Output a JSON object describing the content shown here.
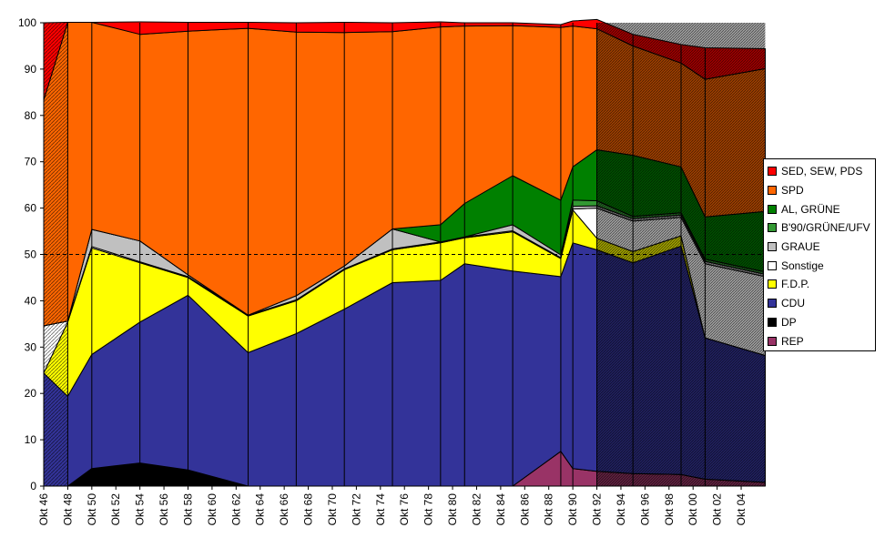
{
  "chart_data": {
    "type": "area",
    "stacked": true,
    "categories": [
      "Okt 46",
      "Okt 48",
      "Okt 50",
      "Okt 52",
      "Okt 54",
      "Okt 56",
      "Okt 58",
      "Okt 60",
      "Okt 62",
      "Okt 64",
      "Okt 66",
      "Okt 68",
      "Okt 70",
      "Okt 72",
      "Okt 74",
      "Okt 76",
      "Okt 78",
      "Okt 80",
      "Okt 82",
      "Okt 84",
      "Okt 86",
      "Okt 88",
      "Okt 90",
      "Okt 92",
      "Okt 94",
      "Okt 96",
      "Okt 98",
      "Okt 00",
      "Okt 02",
      "Okt 04"
    ],
    "x_years": [
      1946,
      1990,
      2006
    ],
    "ylim": [
      0,
      100
    ],
    "yticks": [
      0,
      10,
      20,
      30,
      40,
      50,
      60,
      70,
      80,
      90,
      100
    ],
    "reference_line": 50,
    "grid": false,
    "legend_position": "right",
    "series": [
      {
        "name": "REP",
        "color": "#993366",
        "points": [
          [
            1946,
            0
          ],
          [
            1948,
            0
          ],
          [
            1950,
            0
          ],
          [
            1954,
            0
          ],
          [
            1958,
            0
          ],
          [
            1963,
            0
          ],
          [
            1967,
            0
          ],
          [
            1971,
            0
          ],
          [
            1975,
            0
          ],
          [
            1979,
            0
          ],
          [
            1981,
            0
          ],
          [
            1985,
            0
          ],
          [
            1989,
            7.5
          ],
          [
            1990,
            3.8
          ],
          [
            1992,
            3.2
          ],
          [
            1995,
            2.7
          ],
          [
            1999,
            2.5
          ],
          [
            2001,
            1.5
          ],
          [
            2006,
            0.8
          ]
        ]
      },
      {
        "name": "DP",
        "color": "#000000",
        "points": [
          [
            1946,
            0
          ],
          [
            1948,
            0
          ],
          [
            1950,
            3.8
          ],
          [
            1954,
            5
          ],
          [
            1958,
            3.5
          ],
          [
            1963,
            0
          ],
          [
            1967,
            0
          ],
          [
            1971,
            0
          ],
          [
            1975,
            0
          ],
          [
            1979,
            0
          ],
          [
            1981,
            0
          ],
          [
            1985,
            0
          ],
          [
            1989,
            0
          ],
          [
            1990,
            0
          ],
          [
            1992,
            0
          ],
          [
            1995,
            0
          ],
          [
            1999,
            0
          ],
          [
            2001,
            0
          ],
          [
            2006,
            0
          ]
        ]
      },
      {
        "name": "CDU",
        "color": "#333399",
        "points": [
          [
            1946,
            24.4
          ],
          [
            1948,
            19.4
          ],
          [
            1950,
            24.6
          ],
          [
            1954,
            30.4
          ],
          [
            1958,
            37.7
          ],
          [
            1963,
            28.8
          ],
          [
            1967,
            32.9
          ],
          [
            1971,
            38.2
          ],
          [
            1975,
            43.9
          ],
          [
            1979,
            44.4
          ],
          [
            1981,
            48
          ],
          [
            1985,
            46.4
          ],
          [
            1989,
            37.7
          ],
          [
            1990,
            48.7
          ],
          [
            1992,
            47.8
          ],
          [
            1995,
            45.5
          ],
          [
            1999,
            49.3
          ],
          [
            2001,
            30.5
          ],
          [
            2006,
            27.4
          ]
        ]
      },
      {
        "name": "F.D.P.",
        "color": "#FFFF00",
        "points": [
          [
            1946,
            0
          ],
          [
            1948,
            16
          ],
          [
            1950,
            23
          ],
          [
            1954,
            12.8
          ],
          [
            1958,
            3.8
          ],
          [
            1963,
            7.9
          ],
          [
            1967,
            7.1
          ],
          [
            1971,
            8.5
          ],
          [
            1975,
            7.1
          ],
          [
            1979,
            8.1
          ],
          [
            1981,
            5.6
          ],
          [
            1985,
            8.5
          ],
          [
            1989,
            3.9
          ],
          [
            1990,
            7.1
          ],
          [
            1992,
            2.5
          ],
          [
            1995,
            2.4
          ],
          [
            1999,
            2.2
          ],
          [
            2001,
            0
          ],
          [
            2006,
            0
          ]
        ]
      },
      {
        "name": "Sonstige",
        "color": "#FFFFFF",
        "points": [
          [
            1946,
            10.2
          ],
          [
            1948,
            0.2
          ],
          [
            1950,
            0.3
          ],
          [
            1954,
            0.2
          ],
          [
            1958,
            0.2
          ],
          [
            1963,
            0.2
          ],
          [
            1967,
            0.2
          ],
          [
            1971,
            0.2
          ],
          [
            1975,
            0.2
          ],
          [
            1979,
            0.2
          ],
          [
            1981,
            0.2
          ],
          [
            1985,
            0.2
          ],
          [
            1989,
            0.2
          ],
          [
            1990,
            0.2
          ],
          [
            1992,
            6.5
          ],
          [
            1995,
            6.6
          ],
          [
            1999,
            4
          ],
          [
            2001,
            16
          ],
          [
            2006,
            17
          ]
        ]
      },
      {
        "name": "GRAUE",
        "color": "#C0C0C0",
        "points": [
          [
            1946,
            0
          ],
          [
            1948,
            0
          ],
          [
            1950,
            3.7
          ],
          [
            1954,
            4.5
          ],
          [
            1958,
            0.4
          ],
          [
            1963,
            0
          ],
          [
            1967,
            0.9
          ],
          [
            1971,
            0.6
          ],
          [
            1975,
            4.3
          ],
          [
            1979,
            0
          ],
          [
            1981,
            0
          ],
          [
            1985,
            1.3
          ],
          [
            1989,
            0.6
          ],
          [
            1990,
            0.6
          ],
          [
            1992,
            0.5
          ],
          [
            1995,
            0.5
          ],
          [
            1999,
            0.5
          ],
          [
            2001,
            0.5
          ],
          [
            2006,
            0.5
          ]
        ]
      },
      {
        "name": "B'90/GRÜNE/UFV",
        "color": "#339933",
        "points": [
          [
            1946,
            0
          ],
          [
            1948,
            0
          ],
          [
            1950,
            0
          ],
          [
            1954,
            0
          ],
          [
            1958,
            0
          ],
          [
            1963,
            0
          ],
          [
            1967,
            0
          ],
          [
            1971,
            0
          ],
          [
            1975,
            0
          ],
          [
            1979,
            0
          ],
          [
            1981,
            0
          ],
          [
            1985,
            0
          ],
          [
            1989,
            0
          ],
          [
            1990,
            1.3
          ],
          [
            1992,
            1.1
          ],
          [
            1995,
            0.5
          ],
          [
            1999,
            0.5
          ],
          [
            2001,
            0.5
          ],
          [
            2006,
            0.5
          ]
        ]
      },
      {
        "name": "AL, GRÜNE",
        "color": "#008000",
        "points": [
          [
            1946,
            0
          ],
          [
            1948,
            0
          ],
          [
            1950,
            0
          ],
          [
            1954,
            0
          ],
          [
            1958,
            0
          ],
          [
            1963,
            0
          ],
          [
            1967,
            0
          ],
          [
            1971,
            0
          ],
          [
            1975,
            0
          ],
          [
            1979,
            3.7
          ],
          [
            1981,
            7.2
          ],
          [
            1985,
            10.6
          ],
          [
            1989,
            11.8
          ],
          [
            1990,
            7.2
          ],
          [
            1992,
            11
          ],
          [
            1995,
            13.2
          ],
          [
            1999,
            9.9
          ],
          [
            2001,
            9.1
          ],
          [
            2006,
            13.1
          ]
        ]
      },
      {
        "name": "SPD",
        "color": "#FF6600",
        "points": [
          [
            1946,
            48.7
          ],
          [
            1948,
            64.5
          ],
          [
            1950,
            44.7
          ],
          [
            1954,
            44.6
          ],
          [
            1958,
            52.6
          ],
          [
            1963,
            61.9
          ],
          [
            1967,
            56.9
          ],
          [
            1971,
            50.4
          ],
          [
            1975,
            42.6
          ],
          [
            1979,
            42.7
          ],
          [
            1981,
            38.3
          ],
          [
            1985,
            32.4
          ],
          [
            1989,
            37.3
          ],
          [
            1990,
            30.4
          ],
          [
            1992,
            26.1
          ],
          [
            1995,
            23.6
          ],
          [
            1999,
            22.4
          ],
          [
            2001,
            29.7
          ],
          [
            2006,
            30.8
          ]
        ]
      },
      {
        "name": "SED, SEW, PDS",
        "color": "#FF0000",
        "points": [
          [
            1946,
            16.7
          ],
          [
            1948,
            0
          ],
          [
            1950,
            0
          ],
          [
            1954,
            2.7
          ],
          [
            1958,
            1.9
          ],
          [
            1963,
            1.3
          ],
          [
            1967,
            2
          ],
          [
            1971,
            2.2
          ],
          [
            1975,
            1.9
          ],
          [
            1979,
            1.1
          ],
          [
            1981,
            0.7
          ],
          [
            1985,
            0.6
          ],
          [
            1989,
            0.6
          ],
          [
            1990,
            1.1
          ],
          [
            1992,
            2
          ],
          [
            1995,
            2.5
          ],
          [
            1999,
            4
          ],
          [
            2001,
            6.8
          ],
          [
            2006,
            4.3
          ]
        ]
      }
    ]
  },
  "legend": {
    "items": [
      {
        "label": "SED, SEW, PDS",
        "color": "#FF0000"
      },
      {
        "label": "SPD",
        "color": "#FF6600"
      },
      {
        "label": "AL, GRÜNE",
        "color": "#008000"
      },
      {
        "label": "B'90/GRÜNE/UFV",
        "color": "#339933"
      },
      {
        "label": "GRAUE",
        "color": "#C0C0C0"
      },
      {
        "label": "Sonstige",
        "color": "#FFFFFF"
      },
      {
        "label": "F.D.P.",
        "color": "#FFFF00"
      },
      {
        "label": "CDU",
        "color": "#333399"
      },
      {
        "label": "DP",
        "color": "#000000"
      },
      {
        "label": "REP",
        "color": "#993366"
      }
    ]
  }
}
